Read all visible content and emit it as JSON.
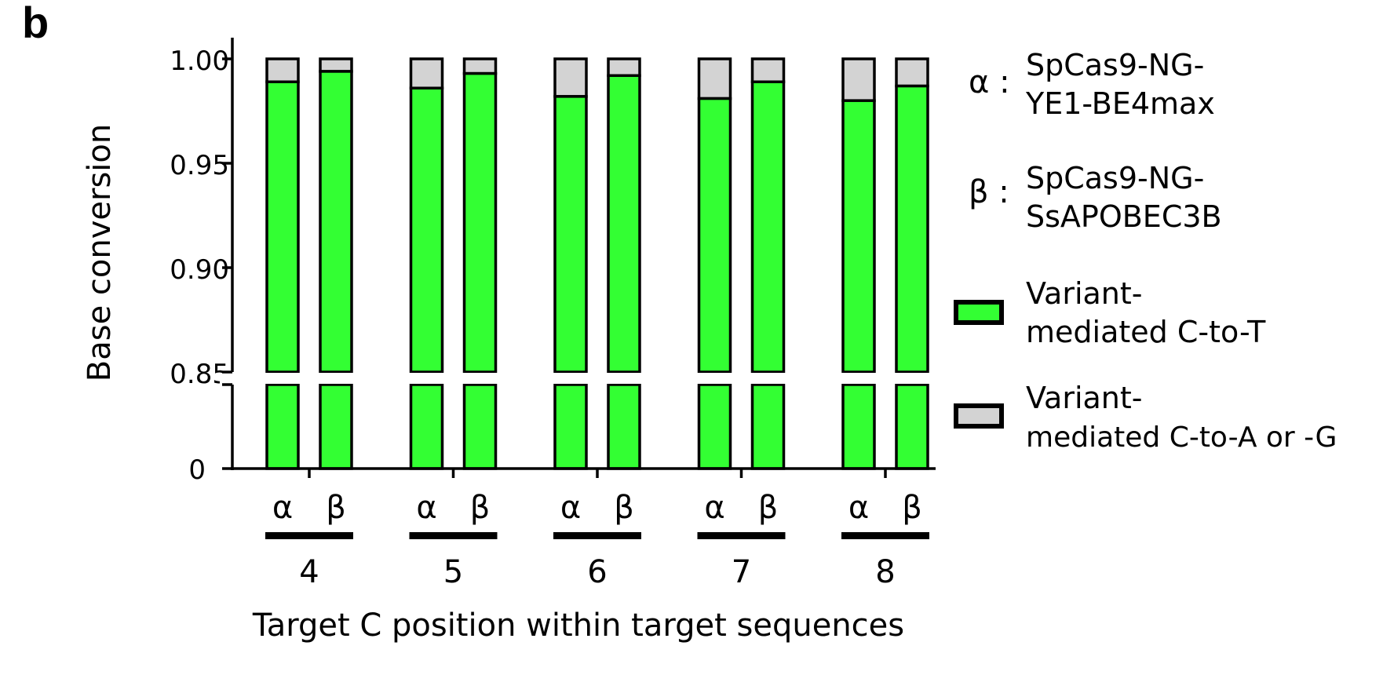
{
  "panel_label": "b",
  "chart_data": {
    "type": "bar",
    "stacked": true,
    "xlabel": "Target C position within target sequences",
    "ylabel": "Base conversion",
    "y_axis_break": true,
    "y_upper_range": [
      0.85,
      1.0
    ],
    "y_lower_range": [
      0,
      0.85
    ],
    "y_ticks": [
      "1.00",
      "0.95",
      "0.90",
      "0.85",
      "0"
    ],
    "groups": [
      "4",
      "5",
      "6",
      "7",
      "8"
    ],
    "bar_labels": [
      "α",
      "β"
    ],
    "series": [
      {
        "name": "Variant-mediated C-to-T",
        "color": "#33ff33",
        "values": [
          [
            0.989,
            0.994
          ],
          [
            0.986,
            0.993
          ],
          [
            0.982,
            0.992
          ],
          [
            0.981,
            0.989
          ],
          [
            0.98,
            0.987
          ]
        ]
      },
      {
        "name": "Variant-mediated C-to-A or -G",
        "color": "#d3d3d3",
        "values": [
          [
            0.011,
            0.006
          ],
          [
            0.014,
            0.007
          ],
          [
            0.018,
            0.008
          ],
          [
            0.019,
            0.011
          ],
          [
            0.02,
            0.013
          ]
        ]
      }
    ],
    "legend_position": "right",
    "legend": {
      "alpha_symbol": "α :",
      "alpha_line1": "SpCas9-NG-",
      "alpha_line2": "YE1-BE4max",
      "beta_symbol": "β :",
      "beta_line1": "SpCas9-NG-",
      "beta_line2": "SsAPOBEC3B",
      "green_line1": "Variant-",
      "green_line2": "mediated C-to-T",
      "gray_line1": "Variant-",
      "gray_line2": "mediated C-to-A or -G"
    }
  }
}
